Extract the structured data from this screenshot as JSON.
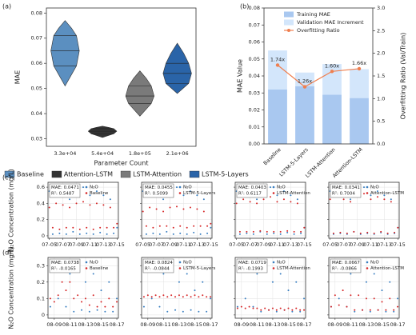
{
  "chart_data": [
    {
      "type": "violin",
      "panel_label": "(a)",
      "xlabel": "Parameter Count",
      "ylabel": "MAE",
      "categories": [
        "3.3e+04",
        "5.4e+04",
        "1.8e+05",
        "2.1e+06"
      ],
      "series": [
        {
          "name": "Baseline",
          "color": "#5b8fc0",
          "values": [
            0.051,
            0.059,
            0.065,
            0.071,
            0.077
          ]
        },
        {
          "name": "Attention-LSTM",
          "color": "#333333",
          "values": [
            0.0305,
            0.032,
            0.033,
            0.034,
            0.035
          ]
        },
        {
          "name": "LSTM-Attention",
          "color": "#7a7a7a",
          "values": [
            0.039,
            0.044,
            0.047,
            0.051,
            0.057
          ]
        },
        {
          "name": "LSTM-5-Layers",
          "color": "#2a64a8",
          "values": [
            0.048,
            0.052,
            0.056,
            0.06,
            0.068
          ]
        }
      ],
      "ylim": [
        0.027,
        0.082
      ],
      "yticks": [
        0.03,
        0.04,
        0.05,
        0.06,
        0.07,
        0.08
      ],
      "legend": "bottom"
    },
    {
      "type": "bar",
      "panel_label": "(b)",
      "ylabel": "MAE Value",
      "y2label": "Overfitting Ratio (Val/Train)",
      "stacked": true,
      "legend": "upper center",
      "categories": [
        "Baseline",
        "LSTM-5-Layers",
        "LSTM-Attention",
        "Attention-LSTM"
      ],
      "series": [
        {
          "name": "Training MAE",
          "color": "#a9c8f0",
          "values": [
            0.032,
            0.034,
            0.029,
            0.027
          ]
        },
        {
          "name": "Validation MAE Increment",
          "color": "#d3e6fb",
          "values": [
            0.023,
            0.008,
            0.018,
            0.017
          ]
        },
        {
          "name": "Overfitting Ratio",
          "color": "#ef7f4f",
          "axis": "y2",
          "values": [
            1.74,
            1.26,
            1.6,
            1.66
          ],
          "value_labels": [
            "1.74x",
            "1.26x",
            "1.60x",
            "1.66x"
          ]
        }
      ],
      "ylim": [
        0,
        0.08
      ],
      "yticks": [
        {
          "value": 0,
          "label": "0.00"
        },
        {
          "value": 0.01,
          "label": "0.01"
        },
        {
          "value": 0.02,
          "label": "0.02"
        },
        {
          "value": 0.03,
          "label": "0.03"
        },
        {
          "value": 0.04,
          "label": "0.04"
        },
        {
          "value": 0.05,
          "label": "0.05"
        },
        {
          "value": 0.06,
          "label": "0.06"
        },
        {
          "value": 0.07,
          "label": "0.07"
        },
        {
          "value": 0.08,
          "label": "0.08"
        }
      ],
      "y2lim": [
        0,
        3
      ],
      "y2ticks": [
        {
          "value": 0,
          "label": "0.0"
        },
        0.5,
        {
          "value": 1,
          "label": "1.0"
        },
        1.5,
        {
          "value": 2,
          "label": "2.0"
        },
        2.5,
        {
          "value": 3,
          "label": "3.0"
        }
      ]
    },
    {
      "type": "scatter",
      "panel_label": "(c)",
      "ylabel": "N₂O Concentration (mg/L)",
      "annotation": [
        "MAE: 0.0471",
        "R²: 0.5487"
      ],
      "grid": true,
      "x": [
        5,
        5.5,
        6,
        6.5,
        7,
        7.5,
        8,
        8.5,
        9,
        9.5,
        10,
        10.5,
        11,
        11.5,
        12,
        12.5,
        13,
        13.5,
        14,
        14.5,
        15
      ],
      "series": [
        {
          "name": "N₂O",
          "color": "#3a7fc1",
          "values": [
            0.55,
            0.02,
            0.6,
            0.03,
            0.5,
            0.02,
            0.45,
            0.05,
            0.55,
            0.02,
            0.6,
            0.03,
            0.5,
            0.02,
            0.55,
            0.04,
            0.5,
            0.02,
            0.45,
            0.03,
            0.1
          ]
        },
        {
          "name": "Baseline",
          "color": "#d62728",
          "values": [
            0.35,
            0.1,
            0.4,
            0.08,
            0.38,
            0.1,
            0.35,
            0.1,
            0.4,
            0.08,
            0.42,
            0.1,
            0.38,
            0.08,
            0.4,
            0.1,
            0.38,
            0.1,
            0.35,
            0.1,
            0.15
          ]
        }
      ],
      "xlim": [
        4.8,
        15.2
      ],
      "xticks": [
        {
          "value": 5,
          "label": "07-05"
        },
        {
          "value": 7,
          "label": "07-07"
        },
        {
          "value": 9,
          "label": "07-09"
        },
        {
          "value": 11,
          "label": "07-11"
        },
        {
          "value": 13,
          "label": "07-13"
        },
        {
          "value": 15,
          "label": "07-15"
        }
      ],
      "ylim": [
        -0.03,
        0.66
      ],
      "yticks": [
        0,
        0.2,
        0.4,
        0.6
      ]
    },
    {
      "type": "scatter",
      "annotation": [
        "MAE: 0.0455",
        "R²: 0.5099"
      ],
      "grid": true,
      "x": [
        5,
        5.5,
        6,
        6.5,
        7,
        7.5,
        8,
        8.5,
        9,
        9.5,
        10,
        10.5,
        11,
        11.5,
        12,
        12.5,
        13,
        13.5,
        14,
        14.5,
        15
      ],
      "series": [
        {
          "name": "N₂O",
          "color": "#3a7fc1",
          "values": [
            0.55,
            0.02,
            0.6,
            0.03,
            0.5,
            0.02,
            0.45,
            0.05,
            0.55,
            0.02,
            0.6,
            0.03,
            0.5,
            0.02,
            0.55,
            0.04,
            0.5,
            0.02,
            0.45,
            0.03,
            0.1
          ]
        },
        {
          "name": "LSTM-5-Layers",
          "color": "#d62728",
          "values": [
            0.3,
            0.12,
            0.35,
            0.1,
            0.33,
            0.12,
            0.3,
            0.12,
            0.35,
            0.1,
            0.36,
            0.12,
            0.33,
            0.1,
            0.35,
            0.12,
            0.33,
            0.12,
            0.3,
            0.12,
            0.15
          ]
        }
      ],
      "xlim": [
        4.8,
        15.2
      ],
      "xticks": [
        {
          "value": 5,
          "label": "07-05"
        },
        {
          "value": 7,
          "label": "07-07"
        },
        {
          "value": 9,
          "label": "07-09"
        },
        {
          "value": 11,
          "label": "07-11"
        },
        {
          "value": 13,
          "label": "07-13"
        },
        {
          "value": 15,
          "label": "07-15"
        }
      ],
      "ylim": [
        -0.03,
        0.66
      ],
      "yticks": [
        0,
        0.2,
        0.4,
        0.6
      ]
    },
    {
      "type": "scatter",
      "annotation": [
        "MAE: 0.0403",
        "R²: 0.6117"
      ],
      "grid": true,
      "x": [
        5,
        5.5,
        6,
        6.5,
        7,
        7.5,
        8,
        8.5,
        9,
        9.5,
        10,
        10.5,
        11,
        11.5,
        12,
        12.5,
        13,
        13.5,
        14,
        14.5,
        15
      ],
      "series": [
        {
          "name": "N₂O",
          "color": "#3a7fc1",
          "values": [
            0.55,
            0.02,
            0.6,
            0.03,
            0.5,
            0.02,
            0.45,
            0.05,
            0.55,
            0.02,
            0.6,
            0.03,
            0.5,
            0.02,
            0.55,
            0.04,
            0.5,
            0.02,
            0.45,
            0.03,
            0.1
          ]
        },
        {
          "name": "LSTM-Attention",
          "color": "#d62728",
          "values": [
            0.4,
            0.05,
            0.45,
            0.05,
            0.42,
            0.05,
            0.4,
            0.06,
            0.45,
            0.05,
            0.48,
            0.05,
            0.42,
            0.05,
            0.45,
            0.06,
            0.42,
            0.05,
            0.4,
            0.05,
            0.1
          ]
        }
      ],
      "xlim": [
        4.8,
        15.2
      ],
      "xticks": [
        {
          "value": 5,
          "label": "07-05"
        },
        {
          "value": 7,
          "label": "07-07"
        },
        {
          "value": 9,
          "label": "07-09"
        },
        {
          "value": 11,
          "label": "07-11"
        },
        {
          "value": 13,
          "label": "07-13"
        },
        {
          "value": 15,
          "label": "07-15"
        }
      ],
      "ylim": [
        -0.03,
        0.66
      ],
      "yticks": [
        0,
        0.2,
        0.4,
        0.6
      ]
    },
    {
      "type": "scatter",
      "annotation": [
        "MAE: 0.0341",
        "R²: 0.7004"
      ],
      "grid": true,
      "x": [
        5,
        5.5,
        6,
        6.5,
        7,
        7.5,
        8,
        8.5,
        9,
        9.5,
        10,
        10.5,
        11,
        11.5,
        12,
        12.5,
        13,
        13.5,
        14,
        14.5,
        15
      ],
      "series": [
        {
          "name": "N₂O",
          "color": "#3a7fc1",
          "values": [
            0.55,
            0.02,
            0.6,
            0.03,
            0.5,
            0.02,
            0.45,
            0.05,
            0.55,
            0.02,
            0.6,
            0.03,
            0.5,
            0.02,
            0.55,
            0.04,
            0.5,
            0.02,
            0.45,
            0.03,
            0.1
          ]
        },
        {
          "name": "Attention-LSTM",
          "color": "#d62728",
          "values": [
            0.45,
            0.03,
            0.5,
            0.04,
            0.45,
            0.03,
            0.42,
            0.05,
            0.5,
            0.03,
            0.52,
            0.04,
            0.45,
            0.03,
            0.48,
            0.05,
            0.45,
            0.03,
            0.42,
            0.04,
            0.1
          ]
        }
      ],
      "xlim": [
        4.8,
        15.2
      ],
      "xticks": [
        {
          "value": 5,
          "label": "07-05"
        },
        {
          "value": 7,
          "label": "07-07"
        },
        {
          "value": 9,
          "label": "07-09"
        },
        {
          "value": 11,
          "label": "07-11"
        },
        {
          "value": 13,
          "label": "07-13"
        },
        {
          "value": 15,
          "label": "07-15"
        }
      ],
      "ylim": [
        -0.03,
        0.66
      ],
      "yticks": [
        0,
        0.2,
        0.4,
        0.6
      ]
    },
    {
      "type": "scatter",
      "panel_label": "(d)",
      "ylabel": "N₂O Concentration (mg/L)",
      "annotation": [
        "MAE: 0.0738",
        "R²: -0.0165"
      ],
      "grid": true,
      "x": [
        8.5,
        9,
        9.5,
        10,
        10.5,
        11,
        11.5,
        12,
        12.5,
        13,
        13.5,
        14,
        14.5,
        15,
        15.5,
        16,
        16.5,
        17
      ],
      "series": [
        {
          "name": "N₂O",
          "color": "#3a7fc1",
          "values": [
            0.05,
            0.3,
            0.1,
            0.32,
            0.05,
            0.25,
            0.02,
            0.28,
            0.03,
            0.2,
            0.02,
            0.25,
            0.03,
            0.15,
            0.02,
            0.2,
            0.02,
            0.1
          ]
        },
        {
          "name": "Baseline",
          "color": "#d62728",
          "values": [
            0.1,
            0.08,
            0.12,
            0.2,
            0.15,
            0.2,
            0.1,
            0.12,
            0.08,
            0.1,
            0.06,
            0.12,
            0.05,
            0.08,
            0.05,
            0.1,
            0.05,
            0.08
          ]
        }
      ],
      "xlim": [
        8.2,
        17.2
      ],
      "xticks": [
        {
          "value": 9,
          "label": "08-09"
        },
        {
          "value": 11,
          "label": "08-11"
        },
        {
          "value": 13,
          "label": "08-13"
        },
        {
          "value": 15,
          "label": "08-15"
        },
        {
          "value": 17,
          "label": "08-17"
        }
      ],
      "ylim": [
        -0.02,
        0.35
      ],
      "yticks": [
        0,
        0.1,
        0.2,
        0.3
      ]
    },
    {
      "type": "scatter",
      "annotation": [
        "MAE: 0.0824",
        "R²: -0.0844"
      ],
      "grid": true,
      "x": [
        8.5,
        9,
        9.5,
        10,
        10.5,
        11,
        11.5,
        12,
        12.5,
        13,
        13.5,
        14,
        14.5,
        15,
        15.5,
        16,
        16.5,
        17
      ],
      "series": [
        {
          "name": "N₂O",
          "color": "#3a7fc1",
          "values": [
            0.05,
            0.3,
            0.1,
            0.32,
            0.05,
            0.25,
            0.02,
            0.28,
            0.03,
            0.2,
            0.02,
            0.25,
            0.03,
            0.15,
            0.02,
            0.2,
            0.02,
            0.1
          ]
        },
        {
          "name": "LSTM-5-Layers",
          "color": "#d62728",
          "values": [
            0.11,
            0.12,
            0.11,
            0.12,
            0.11,
            0.12,
            0.11,
            0.12,
            0.11,
            0.12,
            0.11,
            0.12,
            0.11,
            0.12,
            0.11,
            0.12,
            0.11,
            0.11
          ]
        }
      ],
      "xlim": [
        8.2,
        17.2
      ],
      "xticks": [
        {
          "value": 9,
          "label": "08-09"
        },
        {
          "value": 11,
          "label": "08-11"
        },
        {
          "value": 13,
          "label": "08-13"
        },
        {
          "value": 15,
          "label": "08-15"
        },
        {
          "value": 17,
          "label": "08-17"
        }
      ],
      "ylim": [
        -0.02,
        0.35
      ],
      "yticks": [
        0,
        0.1,
        0.2,
        0.3
      ]
    },
    {
      "type": "scatter",
      "annotation": [
        "MAE: 0.0719",
        "R²: -0.1993"
      ],
      "grid": true,
      "x": [
        8.5,
        9,
        9.5,
        10,
        10.5,
        11,
        11.5,
        12,
        12.5,
        13,
        13.5,
        14,
        14.5,
        15,
        15.5,
        16,
        16.5,
        17
      ],
      "series": [
        {
          "name": "N₂O",
          "color": "#3a7fc1",
          "values": [
            0.05,
            0.3,
            0.1,
            0.32,
            0.05,
            0.25,
            0.02,
            0.28,
            0.03,
            0.2,
            0.02,
            0.25,
            0.03,
            0.15,
            0.02,
            0.2,
            0.02,
            0.1
          ]
        },
        {
          "name": "LSTM-Attention",
          "color": "#d62728",
          "values": [
            0.04,
            0.05,
            0.04,
            0.05,
            0.04,
            0.04,
            0.03,
            0.04,
            0.03,
            0.04,
            0.03,
            0.04,
            0.03,
            0.04,
            0.03,
            0.04,
            0.03,
            0.03
          ]
        }
      ],
      "xlim": [
        8.2,
        17.2
      ],
      "xticks": [
        {
          "value": 9,
          "label": "08-09"
        },
        {
          "value": 11,
          "label": "08-11"
        },
        {
          "value": 13,
          "label": "08-13"
        },
        {
          "value": 15,
          "label": "08-15"
        },
        {
          "value": 17,
          "label": "08-17"
        }
      ],
      "ylim": [
        -0.02,
        0.35
      ],
      "yticks": [
        0,
        0.1,
        0.2,
        0.3
      ]
    },
    {
      "type": "scatter",
      "annotation": [
        "MAE: 0.0667",
        "R²: -0.0866"
      ],
      "grid": true,
      "x": [
        8.5,
        9,
        9.5,
        10,
        10.5,
        11,
        11.5,
        12,
        12.5,
        13,
        13.5,
        14,
        14.5,
        15,
        15.5,
        16,
        16.5,
        17
      ],
      "series": [
        {
          "name": "N₂O",
          "color": "#3a7fc1",
          "values": [
            0.05,
            0.3,
            0.1,
            0.32,
            0.05,
            0.25,
            0.02,
            0.28,
            0.03,
            0.2,
            0.02,
            0.25,
            0.03,
            0.15,
            0.02,
            0.2,
            0.02,
            0.1
          ]
        },
        {
          "name": "Attention-LSTM",
          "color": "#d62728",
          "values": [
            0.05,
            0.12,
            0.06,
            0.15,
            0.05,
            0.12,
            0.03,
            0.12,
            0.03,
            0.1,
            0.03,
            0.1,
            0.03,
            0.08,
            0.03,
            0.1,
            0.03,
            0.05
          ]
        }
      ],
      "xlim": [
        8.2,
        17.2
      ],
      "xticks": [
        {
          "value": 9,
          "label": "08-09"
        },
        {
          "value": 11,
          "label": "08-11"
        },
        {
          "value": 13,
          "label": "08-13"
        },
        {
          "value": 15,
          "label": "08-15"
        },
        {
          "value": 17,
          "label": "08-17"
        }
      ],
      "ylim": [
        -0.02,
        0.35
      ],
      "yticks": [
        0,
        0.1,
        0.2,
        0.3
      ]
    }
  ]
}
